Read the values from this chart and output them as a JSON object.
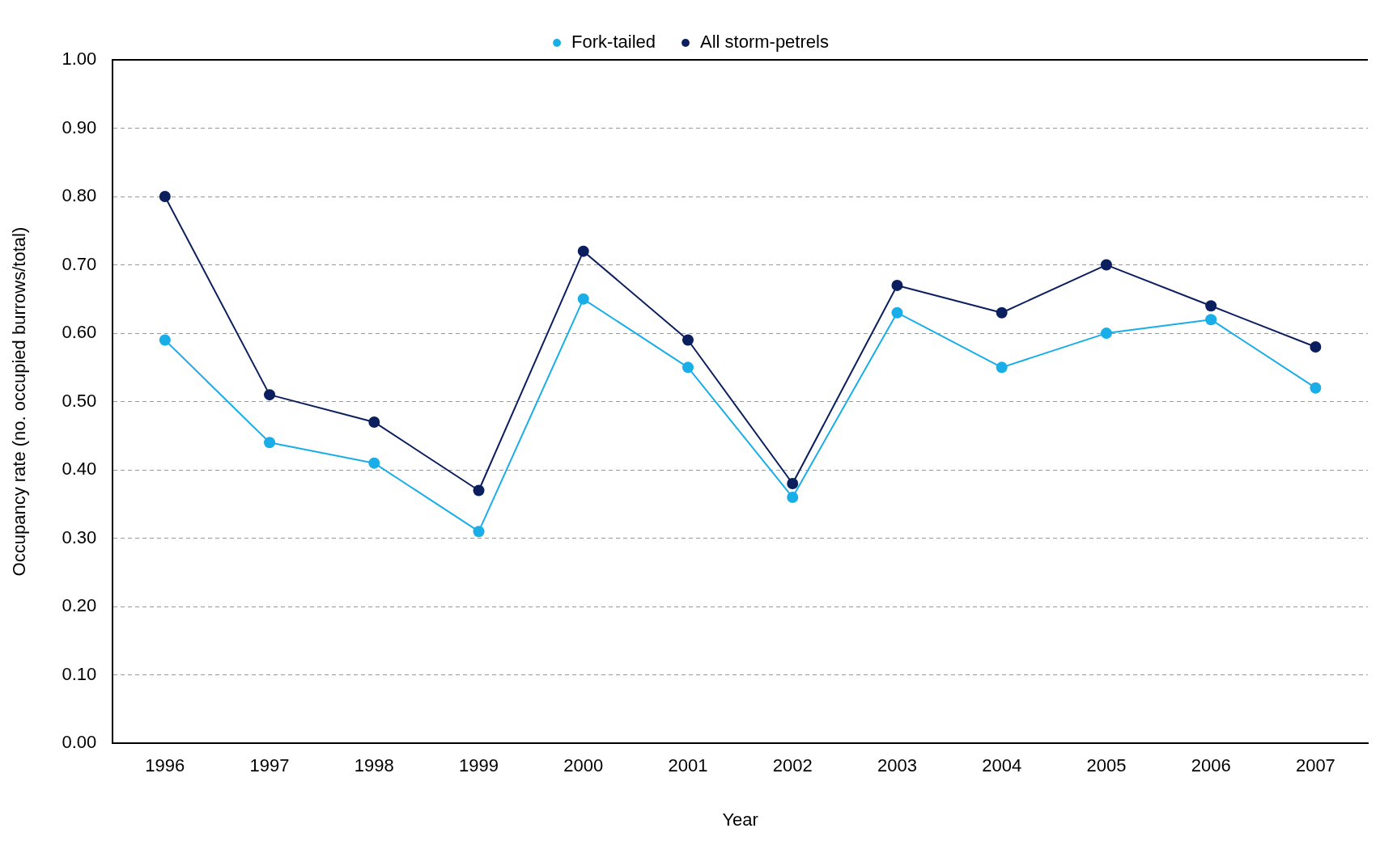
{
  "chart_data": {
    "type": "line",
    "xlabel": "Year",
    "ylabel": "Occupancy rate (no. occupied burrows/total)",
    "categories": [
      "1996",
      "1997",
      "1998",
      "1999",
      "2000",
      "2001",
      "2002",
      "2003",
      "2004",
      "2005",
      "2006",
      "2007"
    ],
    "series": [
      {
        "name": "Fork-tailed",
        "color": "#1aaee8",
        "values": [
          0.59,
          0.44,
          0.41,
          0.31,
          0.65,
          0.55,
          0.36,
          0.63,
          0.55,
          0.6,
          0.62,
          0.52
        ]
      },
      {
        "name": "All storm-petrels",
        "color": "#0b1f5e",
        "values": [
          0.8,
          0.51,
          0.47,
          0.37,
          0.72,
          0.59,
          0.38,
          0.67,
          0.63,
          0.7,
          0.64,
          0.58
        ]
      }
    ],
    "ylim": [
      0,
      1
    ],
    "yticks": [
      {
        "value": 0,
        "label": "0.00"
      },
      {
        "value": 0.1,
        "label": "0.10"
      },
      {
        "value": 0.2,
        "label": "0.20"
      },
      {
        "value": 0.3,
        "label": "0.30"
      },
      {
        "value": 0.4,
        "label": "0.40"
      },
      {
        "value": 0.5,
        "label": "0.50"
      },
      {
        "value": 0.6,
        "label": "0.60"
      },
      {
        "value": 0.7,
        "label": "0.70"
      },
      {
        "value": 0.8,
        "label": "0.80"
      },
      {
        "value": 0.9,
        "label": "0.90"
      },
      {
        "value": 1,
        "label": "1.00"
      }
    ],
    "grid": "y",
    "legend": "top",
    "marker": "circle",
    "line_style": "solid"
  }
}
